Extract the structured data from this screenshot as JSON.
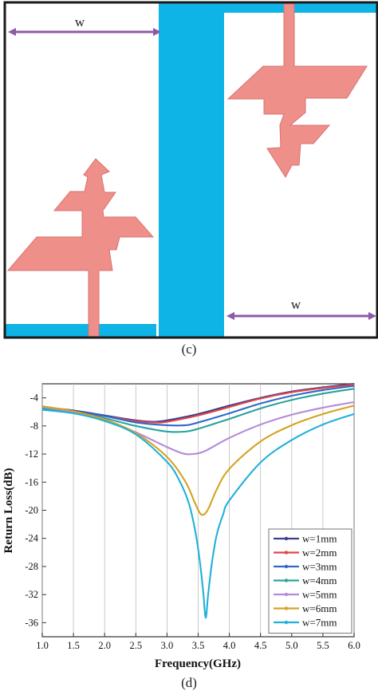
{
  "figures": {
    "top_label": "(c)",
    "bottom_label": "(d)"
  },
  "layout_c": {
    "width_label_left": "w",
    "width_label_right": "w",
    "colors": {
      "substrate": "#0fb4e6",
      "patch": "#ee8f8a",
      "frame": "#1a1a1a",
      "arrow": "#8e5aa8"
    }
  },
  "chart_data": {
    "type": "line",
    "xlabel": "Frequency(GHz)",
    "ylabel": "Return Loss(dB)",
    "xlim": [
      1.0,
      6.0
    ],
    "ylim": [
      -38,
      -2
    ],
    "xticks": [
      "1.0",
      "1.5",
      "2.0",
      "2.5",
      "3.0",
      "3.5",
      "4.0",
      "4.5",
      "5.0",
      "5.5",
      "6.0"
    ],
    "yticks": [
      "-4",
      "-8",
      "-12",
      "-16",
      "-20",
      "-24",
      "-28",
      "-32",
      "-36"
    ],
    "grid": "vertical lines at each x tick",
    "legend_position": "bottom-right",
    "series": [
      {
        "name": "w=1mm",
        "color": "#3a3f8f",
        "x": [
          1.0,
          1.5,
          2.0,
          2.5,
          2.8,
          3.0,
          3.5,
          4.0,
          4.5,
          5.0,
          5.5,
          6.0
        ],
        "y": [
          -5.3,
          -5.8,
          -6.5,
          -7.2,
          -7.4,
          -7.2,
          -6.3,
          -5.1,
          -4.0,
          -3.1,
          -2.5,
          -2.0
        ]
      },
      {
        "name": "w=2mm",
        "color": "#e0464a",
        "x": [
          1.0,
          1.5,
          2.0,
          2.5,
          2.8,
          3.0,
          3.5,
          4.0,
          4.5,
          5.0,
          5.5,
          6.0
        ],
        "y": [
          -5.4,
          -5.9,
          -6.6,
          -7.3,
          -7.5,
          -7.4,
          -6.5,
          -5.3,
          -4.1,
          -3.2,
          -2.6,
          -2.1
        ]
      },
      {
        "name": "w=3mm",
        "color": "#2f6ac9",
        "x": [
          1.0,
          1.5,
          2.0,
          2.5,
          3.0,
          3.3,
          3.5,
          4.0,
          4.5,
          5.0,
          5.5,
          6.0
        ],
        "y": [
          -5.4,
          -5.9,
          -6.6,
          -7.5,
          -7.9,
          -7.9,
          -7.5,
          -6.2,
          -4.8,
          -3.7,
          -2.9,
          -2.3
        ]
      },
      {
        "name": "w=4mm",
        "color": "#2aa39a",
        "x": [
          1.0,
          1.5,
          2.0,
          2.5,
          3.0,
          3.3,
          3.5,
          4.0,
          4.5,
          5.0,
          5.5,
          6.0
        ],
        "y": [
          -5.5,
          -6.0,
          -6.9,
          -8.0,
          -8.8,
          -8.8,
          -8.4,
          -7.0,
          -5.5,
          -4.3,
          -3.4,
          -2.7
        ]
      },
      {
        "name": "w=5mm",
        "color": "#b58ad8",
        "x": [
          1.0,
          1.5,
          2.0,
          2.5,
          3.0,
          3.25,
          3.4,
          3.6,
          4.0,
          4.5,
          5.0,
          5.5,
          6.0
        ],
        "y": [
          -5.3,
          -6.0,
          -7.1,
          -8.9,
          -11.0,
          -11.9,
          -12.0,
          -11.6,
          -9.7,
          -7.8,
          -6.4,
          -5.4,
          -4.6
        ]
      },
      {
        "name": "w=6mm",
        "color": "#d4a31f",
        "x": [
          1.0,
          1.5,
          2.0,
          2.5,
          3.0,
          3.3,
          3.45,
          3.55,
          3.65,
          3.8,
          4.0,
          4.5,
          5.0,
          5.5,
          6.0
        ],
        "y": [
          -5.2,
          -5.9,
          -7.1,
          -9.0,
          -12.4,
          -16.0,
          -19.0,
          -20.6,
          -20.0,
          -17.0,
          -14.1,
          -10.2,
          -7.9,
          -6.3,
          -5.1
        ]
      },
      {
        "name": "w=7mm",
        "color": "#22b0db",
        "x": [
          1.0,
          1.5,
          2.0,
          2.5,
          3.0,
          3.2,
          3.35,
          3.45,
          3.52,
          3.58,
          3.62,
          3.66,
          3.72,
          3.8,
          3.9,
          4.0,
          4.5,
          5.0,
          5.5,
          6.0
        ],
        "y": [
          -5.7,
          -6.2,
          -7.3,
          -9.2,
          -13.1,
          -15.8,
          -19.0,
          -22.8,
          -26.8,
          -31.5,
          -35.3,
          -32.0,
          -27.5,
          -23.4,
          -20.6,
          -18.6,
          -13.2,
          -10.0,
          -7.8,
          -6.3
        ]
      }
    ]
  }
}
